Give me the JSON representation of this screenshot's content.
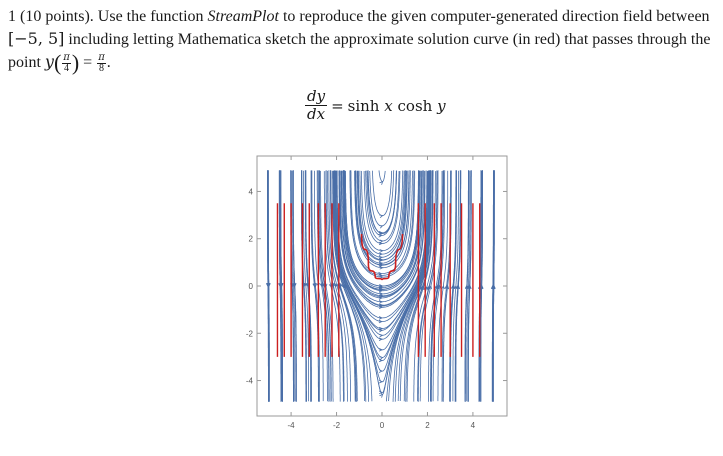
{
  "problem": {
    "number": "1",
    "points": "(10 points).",
    "text_before_fn": "Use the function",
    "function_name": "StreamPlot",
    "text_after_fn": "to reproduce the given computer-generated direction field between",
    "interval": "[−5, 5]",
    "text_line2": "including letting Mathematica sketch the approximate solution curve (in red) that passes through the",
    "point_label": "point",
    "point_func": "y",
    "point_arg_num": "π",
    "point_arg_den": "4",
    "point_val_num": "π",
    "point_val_den": "8"
  },
  "equation": {
    "lhs_num": "dy",
    "lhs_den": "dx",
    "equals": "=",
    "rhs_fn1": "sinh",
    "rhs_var1": "x",
    "rhs_fn2": "cosh",
    "rhs_var2": "y"
  },
  "chart_data": {
    "type": "streamplot",
    "equation": "dy/dx = sinh(x) cosh(y)",
    "xlim": [
      -5.5,
      5.5
    ],
    "ylim": [
      -5.5,
      5.5
    ],
    "x_ticks": [
      -4,
      -2,
      0,
      2,
      4
    ],
    "x_tick_labels": [
      "-4",
      "-2",
      "0",
      "2",
      "4"
    ],
    "y_ticks": [
      -4,
      -2,
      0,
      2,
      4
    ],
    "y_tick_labels": [
      "-4",
      "-2",
      "0",
      "2",
      "4"
    ],
    "stream_color": "#4a6fa8",
    "solution_color": "#cc1f1f",
    "solution_curve": {
      "center": {
        "x": 0,
        "y": 0.25
      },
      "left_branch": [
        [
          -0.9,
          2.2
        ],
        [
          -0.6,
          0.9
        ],
        [
          -0.3,
          0.38
        ],
        [
          0,
          0.25
        ]
      ],
      "right_branch": [
        [
          0,
          0.25
        ],
        [
          0.3,
          0.38
        ],
        [
          0.6,
          0.9
        ],
        [
          0.9,
          2.2
        ]
      ]
    },
    "red_lines_left_x": [
      -4.6,
      -4.3,
      -4.0,
      -3.5,
      -3.2,
      -2.8,
      -2.5,
      -2.2,
      -1.9
    ],
    "red_lines_right_x": [
      1.6,
      1.9,
      2.3,
      2.6,
      3.0,
      3.5,
      4.0,
      4.3
    ],
    "red_lines_ylim": [
      -3.0,
      3.5
    ],
    "grid": false,
    "frame": true
  }
}
